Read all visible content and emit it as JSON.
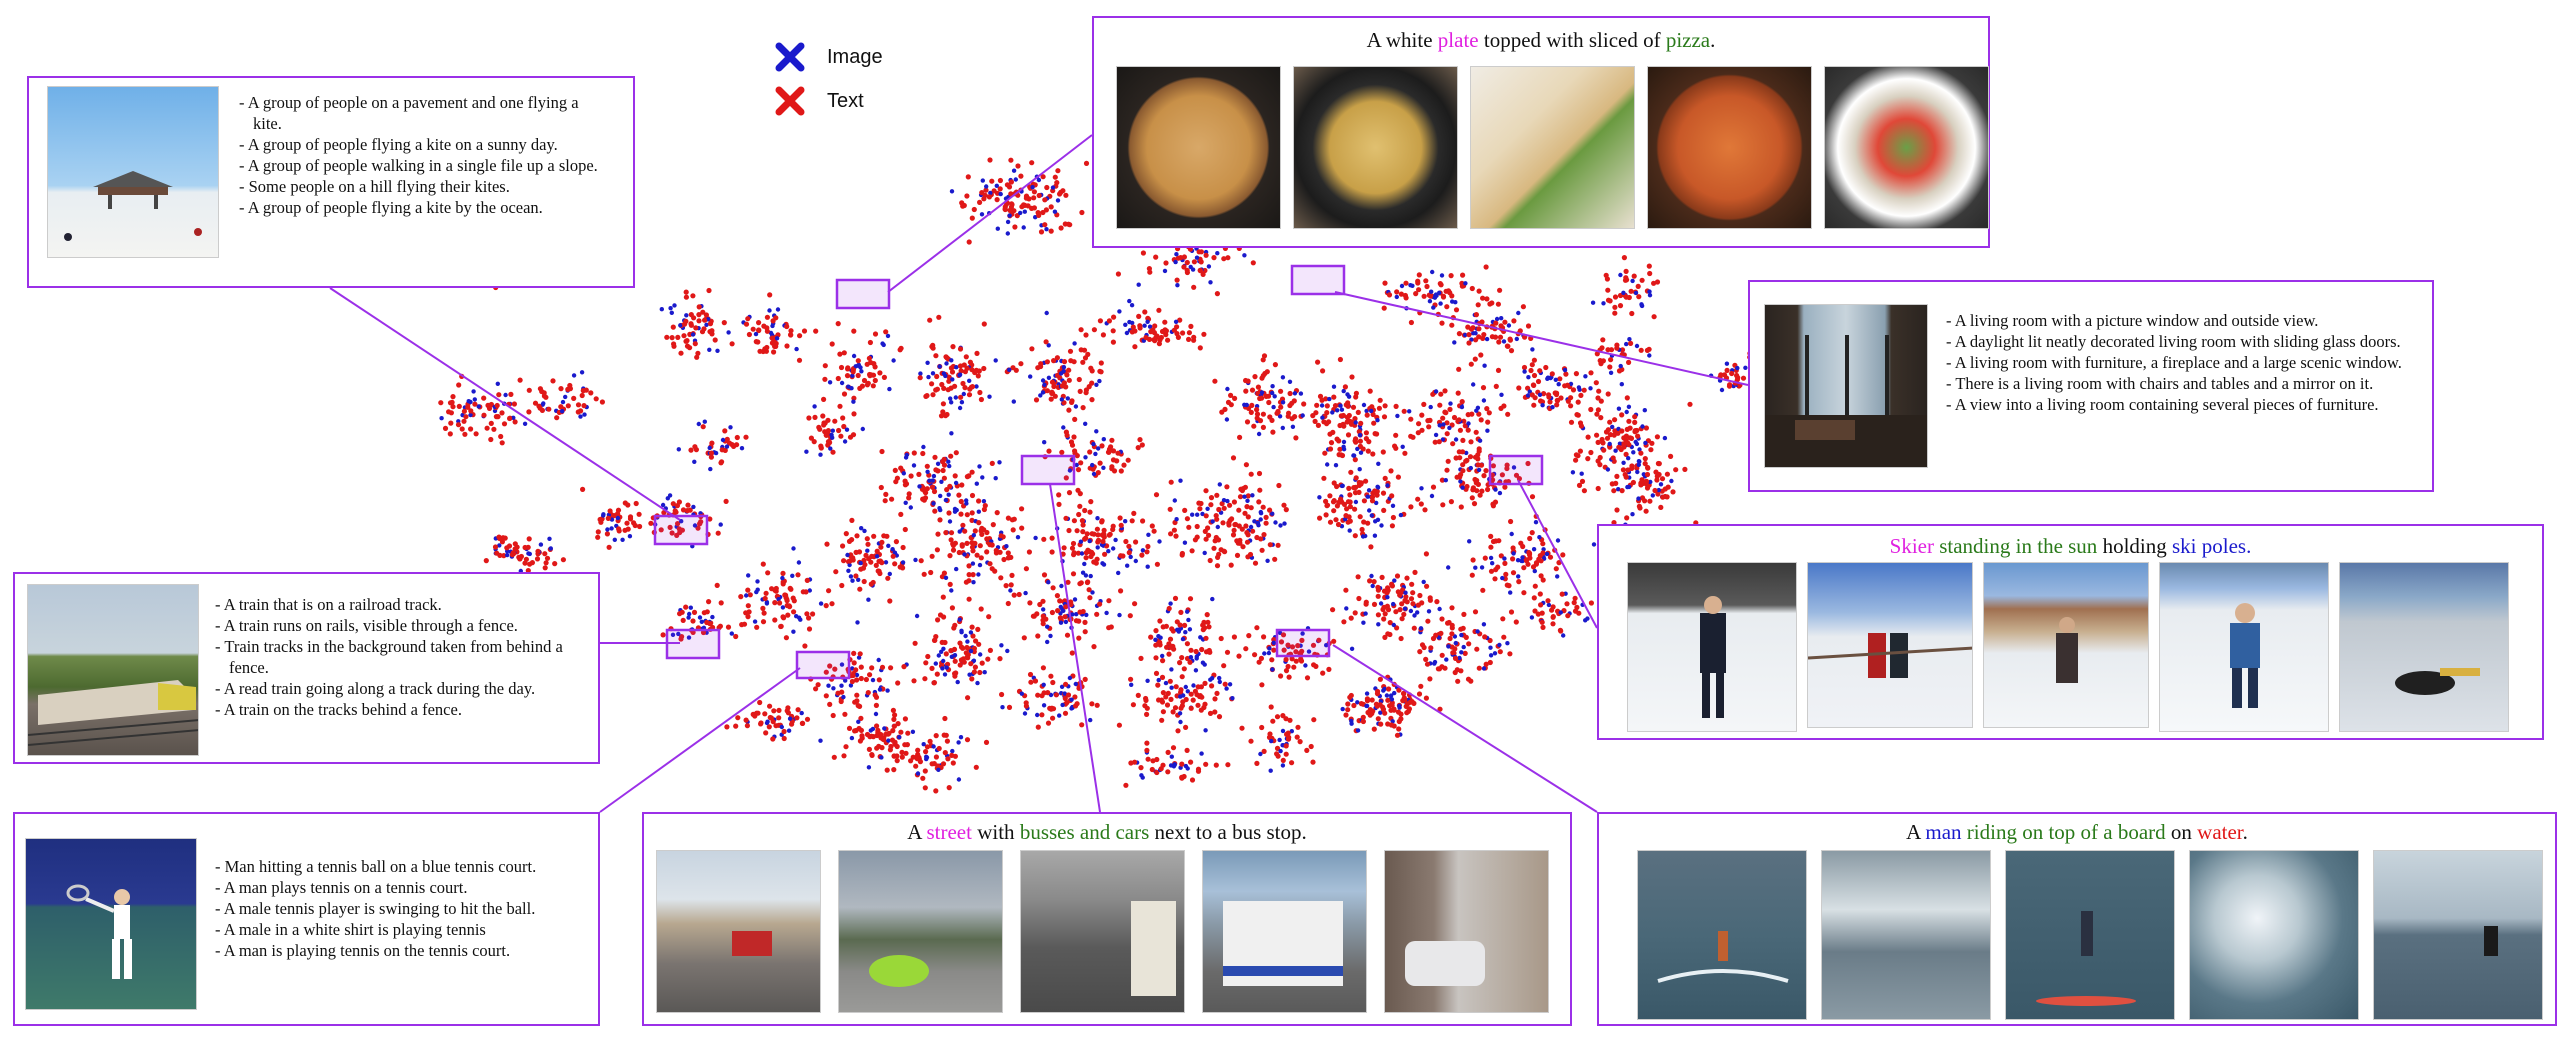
{
  "legend": {
    "items": [
      {
        "label": "Image",
        "color": "#1a1acc",
        "icon": "cross-icon"
      },
      {
        "label": "Text",
        "color": "#e01818",
        "icon": "cross-icon"
      }
    ]
  },
  "colors": {
    "box_border": "#9b30e8",
    "image_points": "#1a1acc",
    "text_points": "#e01818",
    "magenta": "#e020e0",
    "green": "#2a7a1a",
    "blue": "#1a1acc",
    "red": "#e01818"
  },
  "panels": {
    "kite": {
      "captions": [
        "- A group of people on a pavement and one flying a kite.",
        "- A group of people flying a kite on a sunny day.",
        "- A group of people walking in a single file up a slope.",
        "- Some people on a hill flying their kites.",
        "- A group of people flying a kite by the ocean."
      ]
    },
    "train": {
      "captions": [
        "- A train that is on a railroad track.",
        "- A train runs on rails, visible through a  fence.",
        "- Train tracks in the background taken from behind a fence.",
        "- A read train going along a track during  the day.",
        "- A train on the tracks behind a fence."
      ]
    },
    "tennis": {
      "captions": [
        "- Man hitting a tennis ball on a blue tennis court.",
        "- A man plays tennis on a tennis court.",
        "- A male tennis player is swinging to hit the ball.",
        "- A male in a white shirt is playing tennis",
        "- A man is playing tennis on the tennis court."
      ]
    },
    "living": {
      "captions": [
        "- A living room with a picture window and outside view.",
        "- A daylight lit neatly decorated living room with sliding glass doors.",
        "- A living room with furniture, a fireplace and a large scenic window.",
        "- There is a living room with chairs and tables and a mirror on it.",
        "- A view into a living room containing several pieces of furniture."
      ]
    },
    "pizza": {
      "title_parts": [
        {
          "text": "A white ",
          "color": "#111111"
        },
        {
          "text": "plate",
          "color": "#e020e0"
        },
        {
          "text": " topped with sliced of ",
          "color": "#111111"
        },
        {
          "text": "pizza",
          "color": "#2a7a1a"
        },
        {
          "text": ".",
          "color": "#111111"
        }
      ]
    },
    "ski": {
      "title_parts": [
        {
          "text": "Skier",
          "color": "#e020e0"
        },
        {
          "text": " standing in the sun",
          "color": "#2a7a1a"
        },
        {
          "text": " holding ",
          "color": "#111111"
        },
        {
          "text": "ski poles",
          "color": "#1a1acc"
        },
        {
          "text": ".",
          "color": "#1a1acc"
        }
      ]
    },
    "street": {
      "title_parts": [
        {
          "text": "A ",
          "color": "#111111"
        },
        {
          "text": "street",
          "color": "#e020e0"
        },
        {
          "text": " with ",
          "color": "#111111"
        },
        {
          "text": "busses and cars",
          "color": "#2a7a1a"
        },
        {
          "text": " next to a bus stop.",
          "color": "#111111"
        }
      ]
    },
    "water": {
      "title_parts": [
        {
          "text": "A ",
          "color": "#111111"
        },
        {
          "text": "man",
          "color": "#1a1acc"
        },
        {
          "text": " riding on top of a board",
          "color": "#2a7a1a"
        },
        {
          "text": " on ",
          "color": "#111111"
        },
        {
          "text": "water",
          "color": "#e01818"
        },
        {
          "text": ".",
          "color": "#111111"
        }
      ]
    }
  }
}
